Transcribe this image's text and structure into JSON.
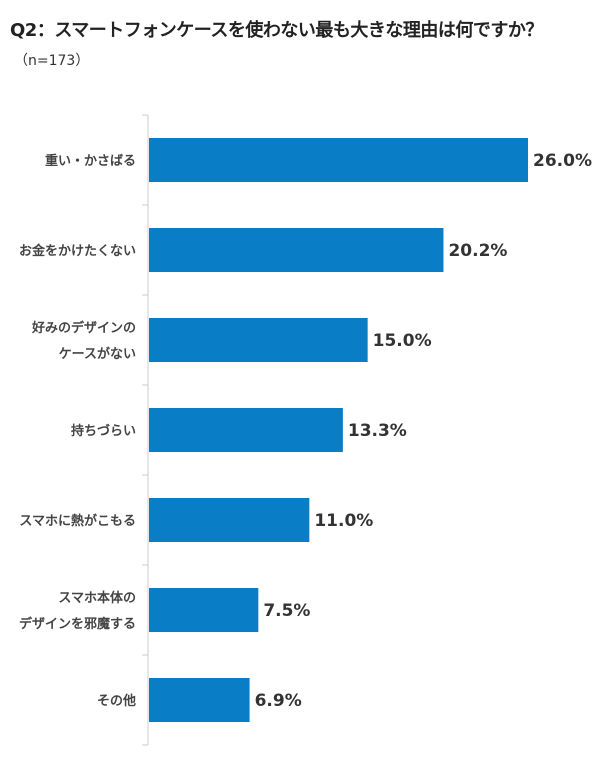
{
  "chart_data": {
    "type": "bar",
    "orientation": "horizontal",
    "title": "Q2：スマートフォンケースを使わない最も大きな理由は何ですか？",
    "subtitle": "（n=173）",
    "categories": [
      [
        "重い・かさばる"
      ],
      [
        "お金をかけたくない"
      ],
      [
        "好みのデザインの",
        "ケースがない"
      ],
      [
        "持ちづらい"
      ],
      [
        "スマホに熱がこもる"
      ],
      [
        "スマホ本体の",
        "デザインを邪魔する"
      ],
      [
        "その他"
      ]
    ],
    "values": [
      26.0,
      20.2,
      15.0,
      13.3,
      11.0,
      7.5,
      6.9
    ],
    "labels": [
      "26.0%",
      "20.2%",
      "15.0%",
      "13.3%",
      "11.0%",
      "7.5%",
      "6.9%"
    ],
    "unit": "%",
    "xlim": [
      0,
      26.0
    ],
    "grid": false,
    "bar_color": "#0a7dc7"
  }
}
